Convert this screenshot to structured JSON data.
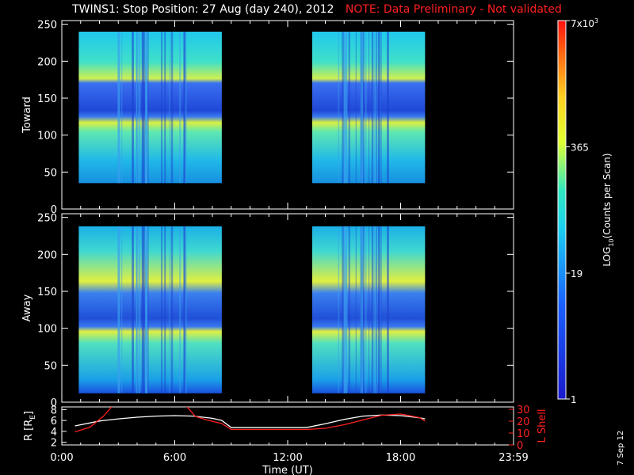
{
  "header": {
    "title": "TWINS1: Stop Position: 27 Aug (day 240), 2012",
    "note": "NOTE: Data Preliminary - Not validated"
  },
  "stamp": "7 Sep 12",
  "colors": {
    "background": "#000000",
    "note": "#ff2020",
    "r_line": "#ffffff",
    "lshell_line": "#ff2020"
  },
  "chart_data": [
    {
      "type": "heatmap",
      "panel": "toward",
      "ylabel": "Toward",
      "x_range_hours": [
        0,
        24
      ],
      "ylim": [
        0,
        255
      ],
      "yticks": [
        "0",
        "50",
        "100",
        "150",
        "200",
        "250"
      ],
      "data_segments_hours": [
        [
          0.9,
          8.5
        ],
        [
          13.3,
          19.3
        ]
      ],
      "y_extent": [
        35,
        240
      ],
      "bright_bands_y": [
        [
          105,
          120
        ],
        [
          160,
          172
        ]
      ],
      "dark_band_y": [
        122,
        168
      ]
    },
    {
      "type": "heatmap",
      "panel": "away",
      "ylabel": "Away",
      "x_range_hours": [
        0,
        24
      ],
      "ylim": [
        0,
        255
      ],
      "yticks": [
        "0",
        "50",
        "100",
        "150",
        "200",
        "250"
      ],
      "data_segments_hours": [
        [
          0.9,
          8.5
        ],
        [
          13.3,
          19.3
        ]
      ],
      "y_extent": [
        12,
        238
      ],
      "bright_bands_y": [
        [
          93,
          110
        ],
        [
          150,
          162
        ]
      ],
      "dark_band_y": [
        110,
        152
      ]
    },
    {
      "type": "line",
      "panel": "orbit",
      "xlabel": "Time (UT)",
      "xticks": [
        "0:00",
        "6:00",
        "12:00",
        "18:00",
        "23:59"
      ],
      "ylabel_left": "R [RE]",
      "ylabel_left_parts": [
        "R [R",
        "E",
        "]"
      ],
      "yticks_left": [
        "2",
        "4",
        "6",
        "8"
      ],
      "ylim_left": [
        1.5,
        8.5
      ],
      "ylabel_right": "L Shell",
      "yticks_right": [
        "0",
        "10",
        "20",
        "30"
      ],
      "ylim_right": [
        0,
        32
      ],
      "series": [
        {
          "axis": "left",
          "x": [
            0.7,
            2,
            3,
            4,
            5,
            6,
            7,
            8,
            8.5,
            9,
            10,
            11,
            12,
            13,
            14,
            15,
            16,
            17,
            18,
            19,
            19.3
          ],
          "y": [
            5.0,
            5.9,
            6.3,
            6.6,
            6.8,
            6.9,
            6.8,
            6.4,
            6.0,
            4.7,
            4.7,
            4.7,
            4.7,
            4.7,
            5.4,
            6.2,
            6.8,
            7.0,
            6.9,
            6.5,
            6.3
          ]
        },
        {
          "axis": "right",
          "x": [
            0.7,
            1.5,
            2.2,
            2.7,
            6.6,
            7.1,
            7.7,
            8.5,
            9,
            11,
            13,
            14,
            15,
            16,
            17,
            18,
            19,
            19.3
          ],
          "y": [
            11,
            15,
            24,
            33,
            33,
            24,
            21,
            18,
            13,
            13,
            13,
            14,
            17,
            21,
            25,
            26,
            23,
            20
          ]
        }
      ]
    },
    {
      "type": "heatmap",
      "panel": "colorbar",
      "ylabel": "LOG10(Counts per Scan)",
      "ylabel_parts": [
        "LOG",
        "10",
        "(Counts per Scan)"
      ],
      "scale": "log",
      "range": [
        1,
        7000
      ],
      "tick_labels": [
        "1",
        "19",
        "365",
        "7x10"
      ],
      "top_label_parts": [
        "7x10",
        "3"
      ],
      "tick_values": [
        1,
        19,
        365,
        7000
      ]
    }
  ]
}
